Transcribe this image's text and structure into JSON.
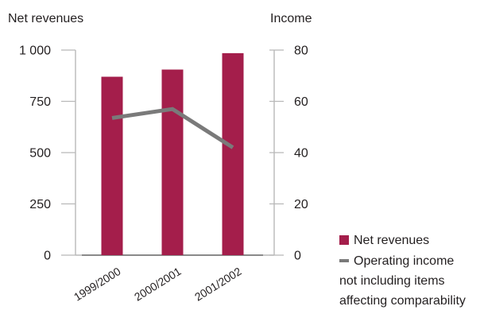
{
  "chart_data": {
    "type": "bar",
    "categories": [
      "1999/2000",
      "2000/2001",
      "2001/2002"
    ],
    "series": [
      {
        "name": "Net revenues",
        "type": "bar",
        "axis": "left",
        "values": [
          870,
          905,
          985
        ],
        "color": "#a41e4b"
      },
      {
        "name": "Operating income",
        "type": "line",
        "axis": "right",
        "values": [
          53.5,
          57,
          42
        ],
        "color": "#7a7a7a"
      }
    ],
    "y_left": {
      "label": "Net revenues",
      "ylim": [
        0,
        1000
      ],
      "ticks": [
        0,
        250,
        500,
        750,
        1000
      ],
      "tick_labels": [
        "0",
        "250",
        "500",
        "750",
        "1 000"
      ]
    },
    "y_right": {
      "label": "Income",
      "ylim": [
        0,
        80
      ],
      "ticks": [
        0,
        20,
        40,
        60,
        80
      ],
      "tick_labels": [
        "0",
        "20",
        "40",
        "60",
        "80"
      ]
    },
    "grid": false,
    "legend": {
      "position": "bottom-right",
      "note_lines": [
        "not including items",
        "affecting comparability"
      ]
    }
  }
}
